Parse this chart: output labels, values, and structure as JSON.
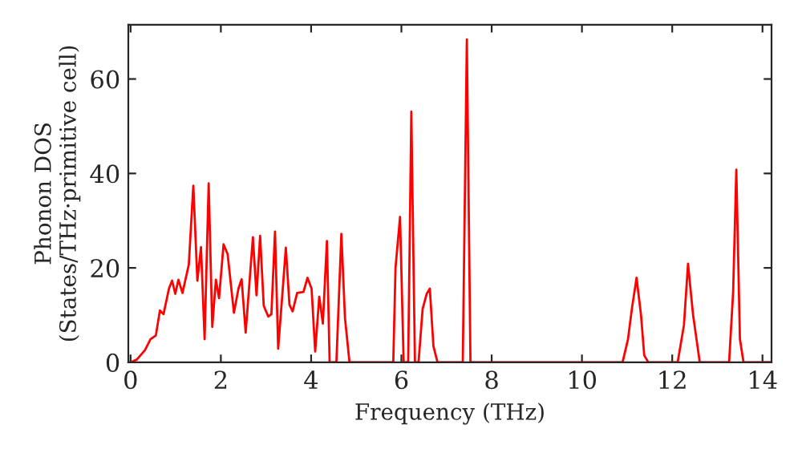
{
  "chart_data": {
    "type": "line",
    "xlabel": "Frequency (THz)",
    "ylabel": "Phonon DOS\n(States/THz·primitive cell)",
    "xlim": [
      -0.05,
      14.2
    ],
    "ylim": [
      0,
      71.5
    ],
    "xticks": [
      0,
      2,
      4,
      6,
      8,
      10,
      12,
      14
    ],
    "yticks": [
      0,
      20,
      40,
      60
    ],
    "grid": false,
    "marker": "none",
    "line_style": "solid",
    "series": [
      {
        "color": "#ff0000",
        "x": [
          0,
          0.14,
          0.32,
          0.44,
          0.56,
          0.65,
          0.73,
          0.85,
          0.92,
          0.99,
          1.06,
          1.15,
          1.29,
          1.39,
          1.48,
          1.56,
          1.64,
          1.73,
          1.81,
          1.89,
          1.96,
          2.06,
          2.15,
          2.29,
          2.39,
          2.46,
          2.55,
          2.71,
          2.79,
          2.87,
          2.95,
          3.05,
          3.12,
          3.2,
          3.27,
          3.36,
          3.44,
          3.52,
          3.59,
          3.69,
          3.83,
          3.92,
          4.01,
          4.09,
          4.18,
          4.26,
          4.35,
          4.41,
          4.56,
          4.67,
          4.75,
          4.85,
          5.82,
          5.87,
          5.97,
          6.05,
          6.15,
          6.22,
          6.3,
          6.38,
          6.47,
          6.56,
          6.63,
          6.71,
          6.8,
          7.36,
          7.45,
          7.53,
          10.9,
          11.02,
          11.11,
          11.21,
          11.31,
          11.38,
          11.47,
          12.12,
          12.26,
          12.35,
          12.46,
          12.61,
          13.26,
          13.35,
          13.42,
          13.5,
          13.58,
          14.18
        ],
        "values": [
          0,
          0.6,
          2.6,
          4.9,
          5.7,
          11,
          10.2,
          15.6,
          17.3,
          14.5,
          17.5,
          14.7,
          20.7,
          37.4,
          17.3,
          24.4,
          4.9,
          37.9,
          7.5,
          17.5,
          13.6,
          25,
          22.9,
          10.5,
          15.6,
          17.6,
          6.3,
          26.5,
          14.2,
          26.8,
          12,
          9.7,
          10.2,
          27.7,
          2.9,
          14.1,
          24.3,
          12.2,
          10.8,
          14.7,
          14.9,
          17.9,
          15.6,
          2.3,
          13.9,
          8.2,
          25.7,
          0,
          0,
          27.2,
          9.4,
          0,
          0,
          20.1,
          30.8,
          0,
          0,
          53.1,
          0,
          0,
          11.3,
          14.5,
          15.6,
          3.4,
          0,
          0,
          68.4,
          0,
          0,
          4.9,
          11.6,
          17.9,
          9.9,
          1.5,
          0,
          0,
          7.9,
          20.9,
          10.2,
          0,
          0,
          15,
          40.8,
          4.9,
          0,
          0
        ]
      }
    ]
  }
}
